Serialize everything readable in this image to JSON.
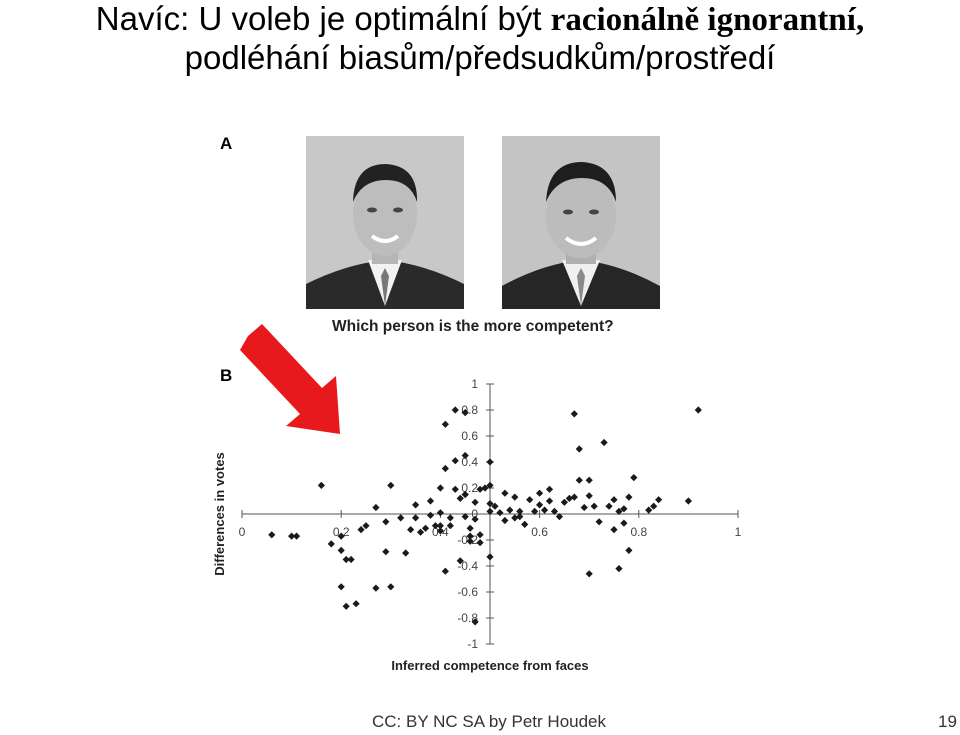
{
  "slide": {
    "title_line1_plain": "Navíc: U voleb je optimální být ",
    "title_line1_bold": "racionálně ignorantní,",
    "title_line2": "podléhání biasům/předsudkům/prostředí",
    "panel_a_label": "A",
    "panel_b_label": "B",
    "question": "Which person is the more competent?",
    "footer_license": "CC: BY NC SA by Petr Houdek",
    "page_number": "19",
    "arrow_color": "#e8191c"
  },
  "chart_data": {
    "type": "scatter",
    "xlabel": "Inferred competence from faces",
    "ylabel": "Differences in votes",
    "xlim": [
      0,
      1
    ],
    "ylim": [
      -1,
      1
    ],
    "x_ticks": [
      "0",
      "0.2",
      "0.4",
      "0.6",
      "0.8",
      "1"
    ],
    "y_ticks": [
      "1",
      "0.8",
      "0.6",
      "0.4",
      "0.2",
      "0",
      "-0.2",
      "-0.4",
      "-0.6",
      "-0.8",
      "-1"
    ],
    "point_color": "#1a1a1a",
    "points": [
      [
        0.06,
        -0.16
      ],
      [
        0.1,
        -0.17
      ],
      [
        0.11,
        -0.17
      ],
      [
        0.16,
        0.22
      ],
      [
        0.18,
        -0.23
      ],
      [
        0.2,
        -0.28
      ],
      [
        0.2,
        -0.17
      ],
      [
        0.22,
        -0.35
      ],
      [
        0.21,
        -0.35
      ],
      [
        0.24,
        -0.12
      ],
      [
        0.25,
        -0.09
      ],
      [
        0.27,
        0.05
      ],
      [
        0.29,
        -0.06
      ],
      [
        0.29,
        -0.29
      ],
      [
        0.3,
        0.22
      ],
      [
        0.32,
        -0.03
      ],
      [
        0.33,
        -0.3
      ],
      [
        0.34,
        -0.12
      ],
      [
        0.35,
        0.07
      ],
      [
        0.35,
        -0.03
      ],
      [
        0.36,
        -0.14
      ],
      [
        0.37,
        -0.11
      ],
      [
        0.38,
        -0.01
      ],
      [
        0.38,
        0.1
      ],
      [
        0.39,
        -0.09
      ],
      [
        0.4,
        0.01
      ],
      [
        0.4,
        -0.09
      ],
      [
        0.4,
        -0.13
      ],
      [
        0.41,
        0.35
      ],
      [
        0.42,
        -0.03
      ],
      [
        0.42,
        -0.09
      ],
      [
        0.43,
        0.19
      ],
      [
        0.43,
        0.41
      ],
      [
        0.44,
        0.12
      ],
      [
        0.45,
        0.15
      ],
      [
        0.45,
        -0.02
      ],
      [
        0.45,
        0.45
      ],
      [
        0.46,
        -0.11
      ],
      [
        0.46,
        -0.17
      ],
      [
        0.46,
        -0.21
      ],
      [
        0.47,
        0.09
      ],
      [
        0.47,
        -0.04
      ],
      [
        0.48,
        0.19
      ],
      [
        0.48,
        -0.22
      ],
      [
        0.49,
        0.2
      ],
      [
        0.5,
        0.02
      ],
      [
        0.5,
        0.08
      ],
      [
        0.5,
        0.22
      ],
      [
        0.5,
        0.4
      ],
      [
        0.51,
        0.06
      ],
      [
        0.52,
        0.01
      ],
      [
        0.53,
        0.16
      ],
      [
        0.53,
        -0.05
      ],
      [
        0.54,
        0.03
      ],
      [
        0.55,
        -0.03
      ],
      [
        0.55,
        0.13
      ],
      [
        0.56,
        0.02
      ],
      [
        0.56,
        -0.02
      ],
      [
        0.57,
        -0.08
      ],
      [
        0.58,
        0.11
      ],
      [
        0.59,
        0.02
      ],
      [
        0.6,
        0.07
      ],
      [
        0.6,
        0.16
      ],
      [
        0.61,
        0.03
      ],
      [
        0.62,
        0.1
      ],
      [
        0.62,
        0.19
      ],
      [
        0.63,
        0.02
      ],
      [
        0.64,
        -0.02
      ],
      [
        0.65,
        0.09
      ],
      [
        0.66,
        0.12
      ],
      [
        0.67,
        0.13
      ],
      [
        0.68,
        0.26
      ],
      [
        0.69,
        0.05
      ],
      [
        0.7,
        0.14
      ],
      [
        0.7,
        0.26
      ],
      [
        0.71,
        0.06
      ],
      [
        0.72,
        -0.06
      ],
      [
        0.74,
        0.06
      ],
      [
        0.75,
        0.11
      ],
      [
        0.75,
        -0.12
      ],
      [
        0.76,
        0.02
      ],
      [
        0.77,
        -0.07
      ],
      [
        0.77,
        0.04
      ],
      [
        0.78,
        -0.28
      ],
      [
        0.78,
        0.13
      ],
      [
        0.79,
        0.28
      ],
      [
        0.82,
        0.03
      ],
      [
        0.84,
        0.11
      ],
      [
        0.83,
        0.06
      ],
      [
        0.9,
        0.1
      ],
      [
        0.92,
        0.8
      ],
      [
        0.4,
        0.2
      ],
      [
        0.45,
        0.15
      ],
      [
        0.48,
        -0.16
      ],
      [
        0.47,
        -0.83
      ],
      [
        0.41,
        0.69
      ],
      [
        0.43,
        0.8
      ],
      [
        0.45,
        0.78
      ],
      [
        0.3,
        -0.56
      ],
      [
        0.27,
        -0.57
      ],
      [
        0.21,
        -0.71
      ],
      [
        0.23,
        -0.69
      ],
      [
        0.2,
        -0.56
      ],
      [
        0.67,
        0.77
      ],
      [
        0.68,
        0.5
      ],
      [
        0.73,
        0.55
      ],
      [
        0.7,
        -0.46
      ],
      [
        0.76,
        -0.42
      ],
      [
        0.41,
        -0.44
      ],
      [
        0.44,
        -0.36
      ],
      [
        0.5,
        -0.33
      ]
    ]
  }
}
